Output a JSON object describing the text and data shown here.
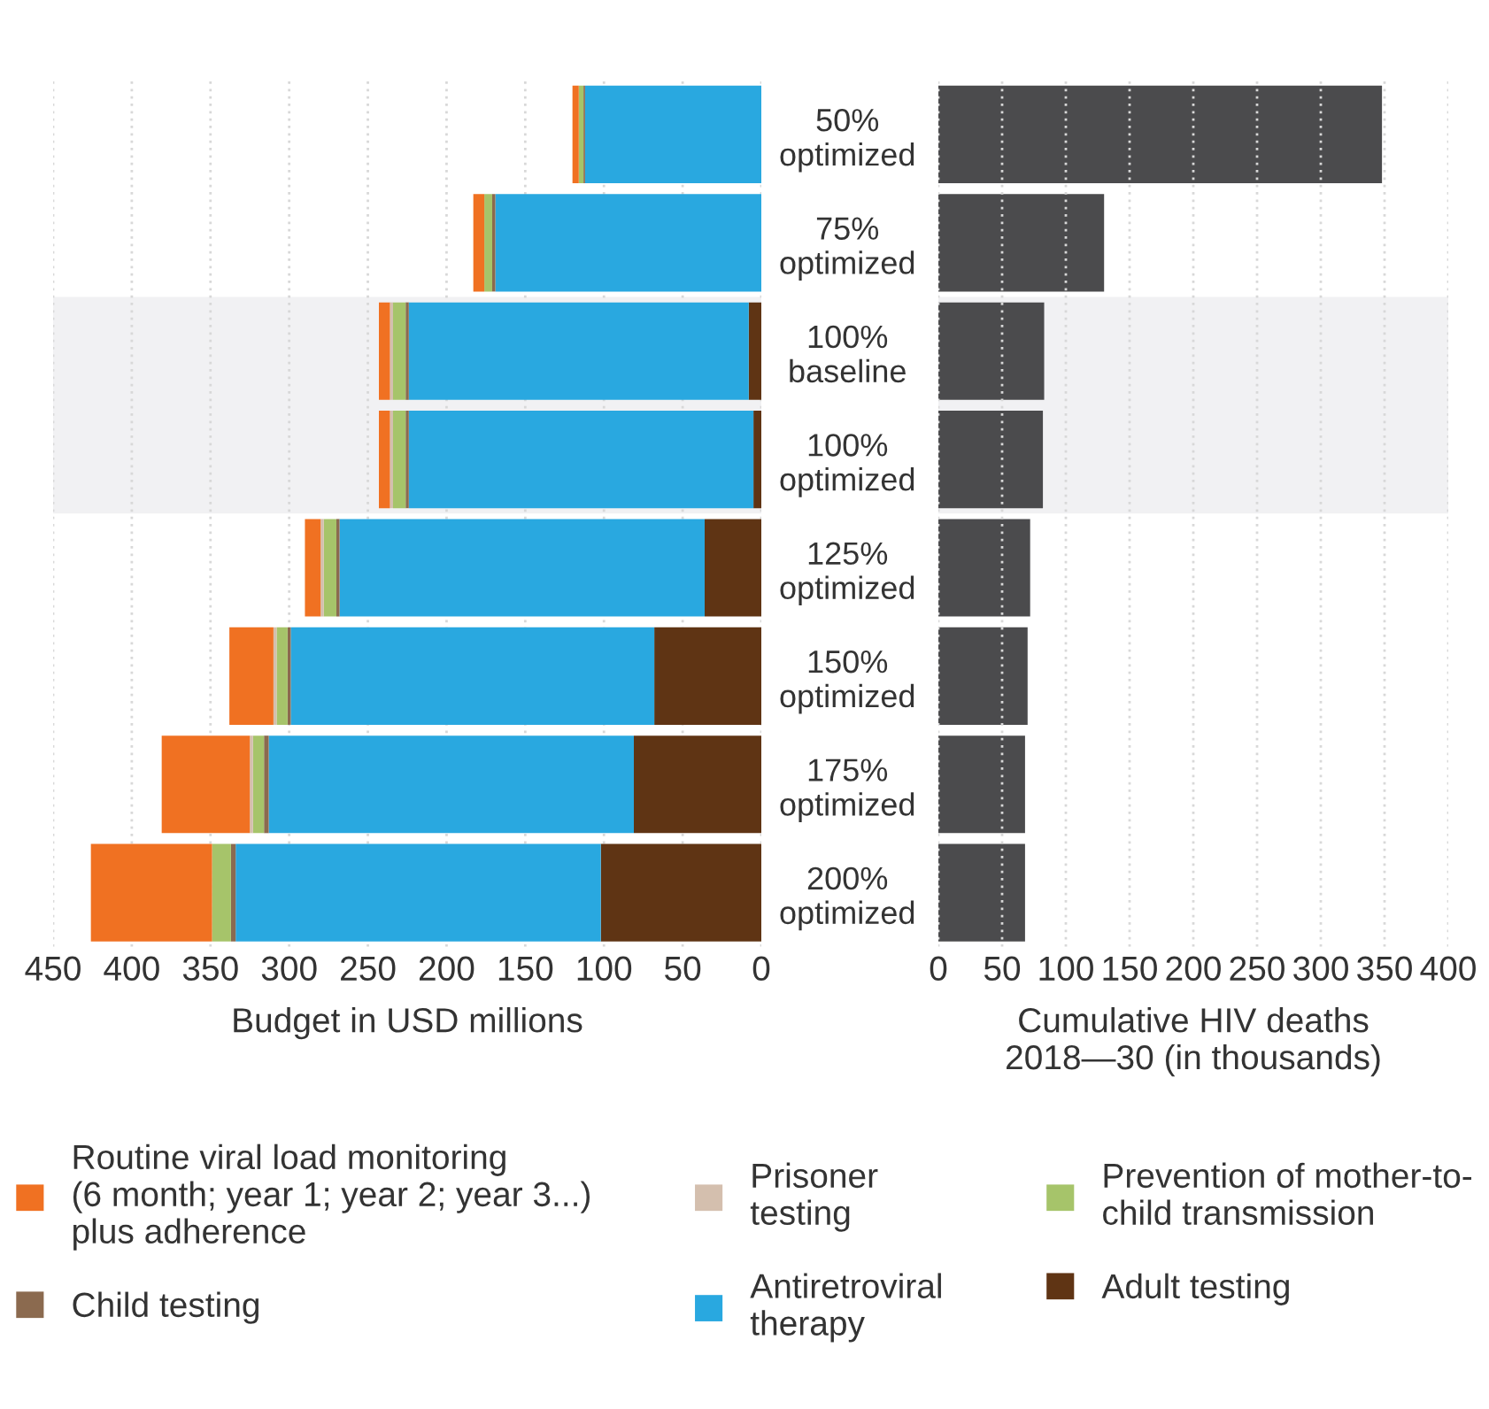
{
  "chart_data": [
    {
      "type": "bar",
      "orientation": "horizontal",
      "stacked": true,
      "xlabel": "Budget in USD millions",
      "categories": [
        "50%\noptimized",
        "75%\noptimized",
        "100%\nbaseline",
        "100%\noptimized",
        "125%\noptimized",
        "150%\noptimized",
        "175%\noptimized",
        "200%\noptimized"
      ],
      "series": [
        {
          "name": "Adult testing",
          "color": "#5f3414",
          "values": [
            0,
            0,
            8,
            5,
            36,
            68,
            81,
            102
          ]
        },
        {
          "name": "Antiretroviral\ntherapy",
          "color": "#29a8e0",
          "values": [
            112,
            169,
            216,
            219,
            232,
            231,
            232,
            232
          ]
        },
        {
          "name": "Child testing",
          "color": "#8b6a4f",
          "values": [
            1,
            2,
            2,
            2,
            2,
            2,
            3,
            3
          ]
        },
        {
          "name": "Prevention of mother-to-\nchild transmission",
          "color": "#a6c46a",
          "values": [
            3,
            5,
            8,
            8,
            8,
            7,
            7,
            12
          ]
        },
        {
          "name": "Prisoner\ntesting",
          "color": "#d4bfae",
          "values": [
            null,
            null,
            2,
            2,
            2,
            2,
            2,
            null
          ]
        },
        {
          "name": "Routine viral load monitoring\n(6 month; year 1; year 2; year 3...)\nplus adherence",
          "color": "#f07122",
          "values": [
            4,
            7,
            7,
            7,
            10,
            28,
            56,
            77
          ]
        }
      ],
      "xlim": [
        450,
        0
      ],
      "xticks": [
        450,
        400,
        350,
        300,
        250,
        200,
        150,
        100,
        50,
        0
      ],
      "bands": [
        {
          "axis": "y",
          "from": "100%\nbaseline",
          "to": "100%\noptimized",
          "color": "#f1f1f3"
        }
      ],
      "grid": "x",
      "legend": "bottom"
    },
    {
      "type": "bar",
      "orientation": "horizontal",
      "xlabel": "Cumulative HIV deaths\n2018—30 (in thousands)",
      "categories": [
        "50%\noptimized",
        "75%\noptimized",
        "100%\nbaseline",
        "100%\noptimized",
        "125%\noptimized",
        "150%\noptimized",
        "175%\noptimized",
        "200%\noptimized"
      ],
      "series": [
        {
          "color": "#4b4b4d",
          "values": [
            348,
            130,
            83,
            82,
            72,
            70,
            68,
            68
          ]
        }
      ],
      "xlim": [
        0,
        400
      ],
      "xticks": [
        0,
        50,
        100,
        150,
        200,
        250,
        300,
        350,
        400
      ],
      "bands": [
        {
          "axis": "y",
          "from": "100%\nbaseline",
          "to": "100%\noptimized",
          "color": "#f1f1f3"
        }
      ],
      "grid": "x",
      "tick_labels": "x"
    }
  ]
}
